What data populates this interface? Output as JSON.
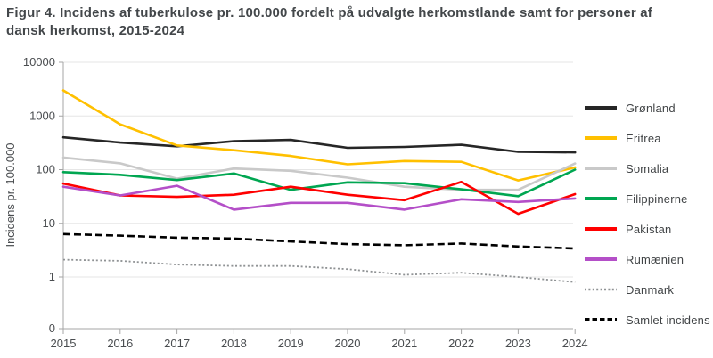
{
  "figure": {
    "title": "Figur 4. Incidens af tuberkulose pr. 100.000 fordelt på udvalgte herkomstlande samt for personer af dansk herkomst, 2015-2024"
  },
  "chart_data": {
    "type": "line",
    "title": "Figur 4. Incidens af tuberkulose pr. 100.000 fordelt på udvalgte herkomstlande samt for personer af dansk herkomst, 2015-2024",
    "xlabel": "",
    "ylabel": "Incidens pr. 100.000",
    "y_scale": "log",
    "ylim": [
      1,
      10000
    ],
    "y_ticks": [
      "10000",
      "1000",
      "100",
      "10",
      "1",
      "0"
    ],
    "grid": "horizontal",
    "legend_position": "right",
    "x": [
      2015,
      2016,
      2017,
      2018,
      2019,
      2020,
      2021,
      2022,
      2023,
      2024
    ],
    "series": [
      {
        "name": "Grønland",
        "color": "#262626",
        "style": "solid",
        "values": [
          400,
          320,
          272,
          340,
          358,
          255,
          265,
          290,
          215,
          210
        ]
      },
      {
        "name": "Eritrea",
        "color": "#FFC000",
        "style": "solid",
        "values": [
          3000,
          700,
          283,
          230,
          180,
          126,
          145,
          140,
          63,
          110
        ]
      },
      {
        "name": "Somalia",
        "color": "#C9C9C9",
        "style": "solid",
        "values": [
          168,
          131,
          68,
          105,
          95,
          71,
          48,
          42,
          42,
          130
        ]
      },
      {
        "name": "Filippinerne",
        "color": "#00A651",
        "style": "solid",
        "values": [
          90,
          80,
          64,
          85,
          42,
          58,
          56,
          43,
          32,
          100
        ]
      },
      {
        "name": "Pakistan",
        "color": "#FF0000",
        "style": "solid",
        "values": [
          55,
          33,
          31,
          34,
          48,
          34,
          27,
          59,
          15,
          35
        ]
      },
      {
        "name": "Rumænien",
        "color": "#B44FC8",
        "style": "solid",
        "values": [
          48,
          33,
          50,
          18,
          24,
          24,
          18,
          28,
          25,
          29
        ]
      },
      {
        "name": "Danmark",
        "color": "#8f9294",
        "style": "dotted",
        "values": [
          2.1,
          2.0,
          1.7,
          1.6,
          1.6,
          1.4,
          1.1,
          1.2,
          1.0,
          0.8
        ]
      },
      {
        "name": "Samlet incidens",
        "color": "#000000",
        "style": "dashed",
        "values": [
          6.3,
          5.9,
          5.4,
          5.2,
          4.6,
          4.1,
          3.9,
          4.2,
          3.7,
          3.4
        ]
      }
    ]
  }
}
